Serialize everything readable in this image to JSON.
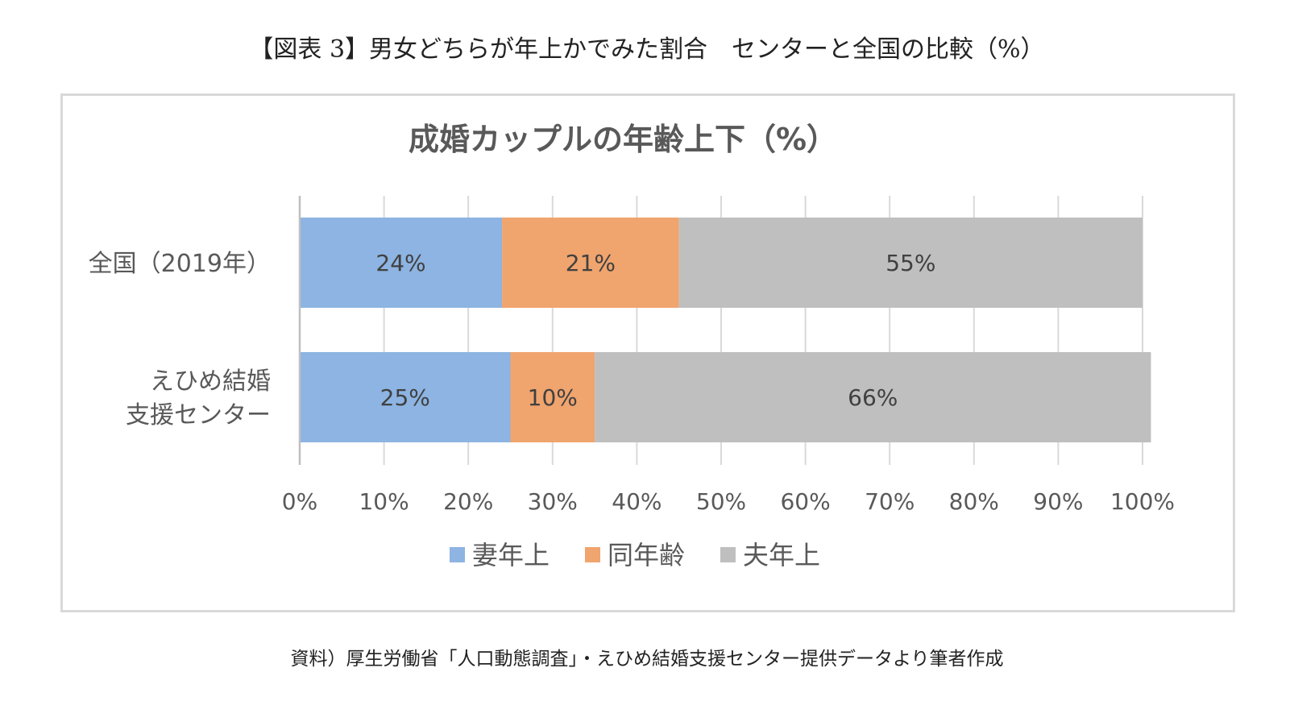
{
  "figure": {
    "title": "【図表 3】男女どちらが年上かでみた割合　センターと全国の比較（%）",
    "source": "資料）厚生労働省「人口動態調査」・えひめ結婚支援センター提供データより筆者作成"
  },
  "chart_data": {
    "type": "bar",
    "orientation": "horizontal",
    "stacked": true,
    "percent_stacked": true,
    "title": "成婚カップルの年齢上下（%）",
    "categories": [
      [
        "全国（2019年）"
      ],
      [
        "えひめ結婚",
        "支援センター"
      ]
    ],
    "series": [
      {
        "name": "妻年上",
        "values": [
          24,
          25
        ],
        "labels": [
          "24%",
          "25%"
        ],
        "color": "#8DB4E2"
      },
      {
        "name": "同年齢",
        "values": [
          21,
          10
        ],
        "labels": [
          "21%",
          "10%"
        ],
        "color": "#F0A46E"
      },
      {
        "name": "夫年上",
        "values": [
          55,
          66
        ],
        "labels": [
          "55%",
          "66%"
        ],
        "color": "#BFBFBF"
      }
    ],
    "x_ticks": [
      "0%",
      "10%",
      "20%",
      "30%",
      "40%",
      "50%",
      "60%",
      "70%",
      "80%",
      "90%",
      "100%"
    ],
    "xlim": [
      0,
      100
    ],
    "grid": true,
    "legend_position": "bottom"
  }
}
